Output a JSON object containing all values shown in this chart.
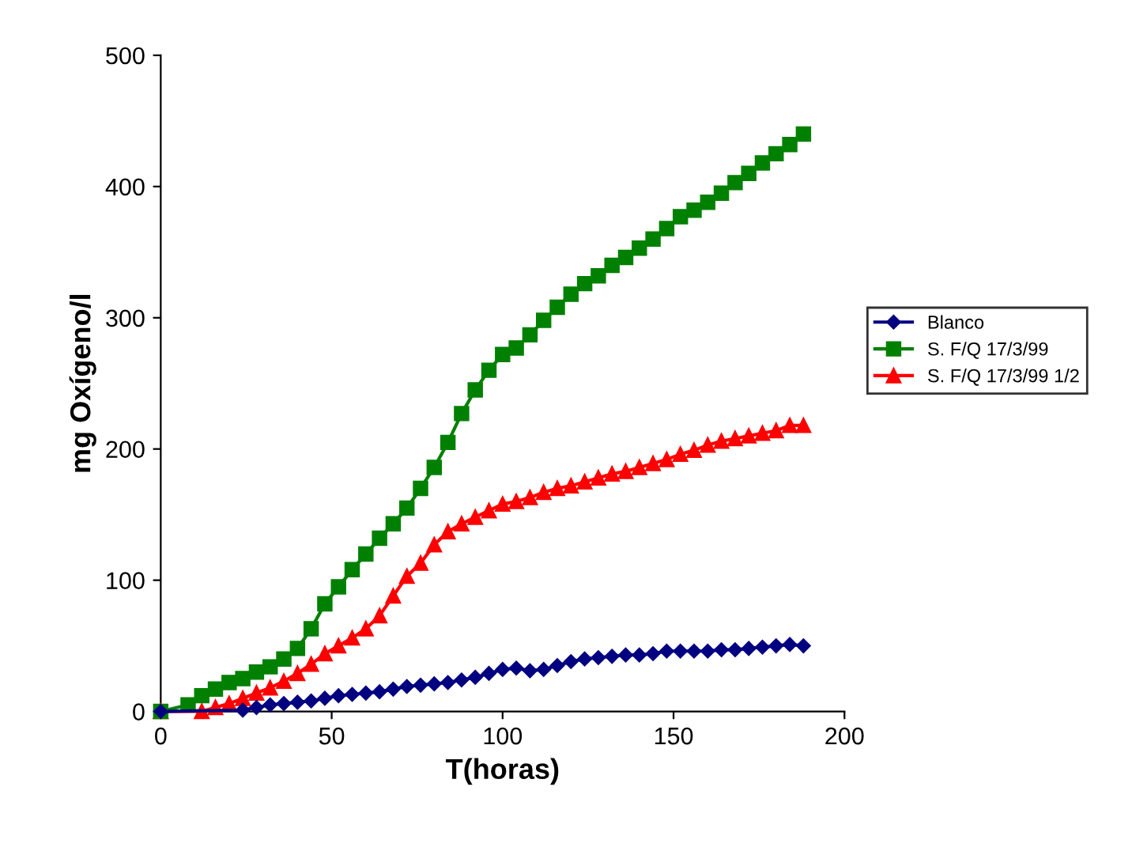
{
  "chart_data": {
    "type": "line",
    "xlabel": "T(horas)",
    "ylabel": "mg Oxígeno/l",
    "xlim": [
      0,
      200
    ],
    "ylim": [
      0,
      500
    ],
    "xticks": [
      0,
      50,
      100,
      150,
      200
    ],
    "yticks": [
      0,
      100,
      200,
      300,
      400,
      500
    ],
    "grid": false,
    "legend": "right",
    "line_style": "solid",
    "series": [
      {
        "name": "Blanco",
        "color": "#000080",
        "marker": "diamond",
        "x": [
          0,
          24,
          28,
          32,
          36,
          40,
          44,
          48,
          52,
          56,
          60,
          64,
          68,
          72,
          76,
          80,
          84,
          88,
          92,
          96,
          100,
          104,
          108,
          112,
          116,
          120,
          124,
          128,
          132,
          136,
          140,
          144,
          148,
          152,
          156,
          160,
          164,
          168,
          172,
          176,
          180,
          184,
          188
        ],
        "values": [
          0,
          1,
          3,
          5,
          6,
          7,
          8,
          10,
          12,
          13,
          14,
          15,
          17,
          19,
          20,
          21,
          22,
          24,
          26,
          29,
          32,
          33,
          31,
          32,
          35,
          38,
          40,
          41,
          42,
          43,
          43,
          44,
          46,
          46,
          46,
          46,
          47,
          47,
          48,
          49,
          50,
          51,
          50
        ]
      },
      {
        "name": "S. F/Q 17/3/99",
        "color": "#008000",
        "marker": "square",
        "x": [
          0,
          8,
          12,
          16,
          20,
          24,
          28,
          32,
          36,
          40,
          44,
          48,
          52,
          56,
          60,
          64,
          68,
          72,
          76,
          80,
          84,
          88,
          92,
          96,
          100,
          104,
          108,
          112,
          116,
          120,
          124,
          128,
          132,
          136,
          140,
          144,
          148,
          152,
          156,
          160,
          164,
          168,
          172,
          176,
          180,
          184,
          188
        ],
        "values": [
          0,
          5,
          12,
          17,
          22,
          25,
          30,
          34,
          40,
          48,
          63,
          82,
          95,
          108,
          120,
          132,
          143,
          155,
          170,
          186,
          205,
          227,
          245,
          260,
          272,
          277,
          287,
          298,
          308,
          318,
          326,
          332,
          340,
          346,
          353,
          360,
          368,
          377,
          382,
          388,
          395,
          403,
          410,
          418,
          425,
          432,
          440
        ]
      },
      {
        "name": "S. F/Q 17/3/99 1/2",
        "color": "#ff0000",
        "marker": "triangle",
        "x": [
          0,
          12,
          16,
          20,
          24,
          28,
          32,
          36,
          40,
          44,
          48,
          52,
          56,
          60,
          64,
          68,
          72,
          76,
          80,
          84,
          88,
          92,
          96,
          100,
          104,
          108,
          112,
          116,
          120,
          124,
          128,
          132,
          136,
          140,
          144,
          148,
          152,
          156,
          160,
          164,
          168,
          172,
          176,
          180,
          184,
          188
        ],
        "values": [
          0,
          0,
          3,
          6,
          10,
          14,
          18,
          23,
          29,
          36,
          44,
          50,
          56,
          63,
          73,
          88,
          103,
          113,
          127,
          137,
          143,
          148,
          153,
          158,
          160,
          163,
          167,
          170,
          172,
          175,
          178,
          181,
          183,
          186,
          189,
          192,
          196,
          199,
          203,
          206,
          208,
          210,
          212,
          214,
          218,
          218
        ]
      }
    ]
  }
}
